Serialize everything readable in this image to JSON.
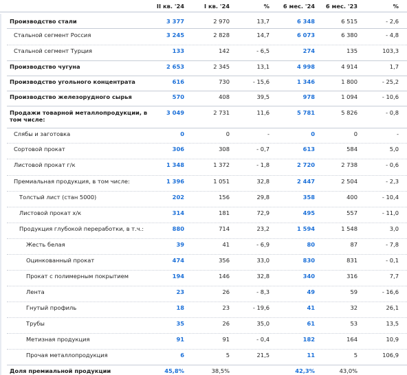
{
  "header": {
    "col1": "II кв. '24",
    "col2": "I кв. '24",
    "col3": "%",
    "col4": "6 мес. '24",
    "col5": "6 мес. '23",
    "col6": "%"
  },
  "rows": [
    {
      "label": "Производство стали",
      "bold": true,
      "indent": 0,
      "values": [
        "3 377",
        "2 970",
        "13,7",
        "6 348",
        "6 515",
        "- 2,6"
      ]
    },
    {
      "label": "Стальной сегмент Россия",
      "bold": false,
      "indent": 1,
      "values": [
        "3 245",
        "2 828",
        "14,7",
        "6 073",
        "6 380",
        "- 4,8"
      ]
    },
    {
      "label": "Стальной сегмент Турция",
      "bold": false,
      "indent": 1,
      "values": [
        "133",
        "142",
        "- 6,5",
        "274",
        "135",
        "103,3"
      ]
    },
    {
      "label": "Производство чугуна",
      "bold": true,
      "indent": 0,
      "values": [
        "2 653",
        "2 345",
        "13,1",
        "4 998",
        "4 914",
        "1,7"
      ]
    },
    {
      "label": "Производство угольного концентрата",
      "bold": true,
      "indent": 0,
      "values": [
        "616",
        "730",
        "- 15,6",
        "1 346",
        "1 800",
        "- 25,2"
      ]
    },
    {
      "label": "Производство железорудного сырья",
      "bold": true,
      "indent": 0,
      "values": [
        "570",
        "408",
        "39,5",
        "978",
        "1 094",
        "- 10,6"
      ]
    },
    {
      "label": "Продажи товарной металлопродукции, в",
      "label2": "том числе:",
      "bold": true,
      "indent": 0,
      "values": [
        "3 049",
        "2 731",
        "11,6",
        "5 781",
        "5 826",
        "- 0,8"
      ]
    },
    {
      "label": "Слябы и заготовка",
      "bold": false,
      "indent": 1,
      "values": [
        "0",
        "0",
        "-",
        "0",
        "0",
        "-"
      ]
    },
    {
      "label": "Сортовой прокат",
      "bold": false,
      "indent": 1,
      "values": [
        "306",
        "308",
        "- 0,7",
        "613",
        "584",
        "5,0"
      ]
    },
    {
      "label": "Листовой прокат г/к",
      "bold": false,
      "indent": 1,
      "values": [
        "1 348",
        "1 372",
        "- 1,8",
        "2 720",
        "2 738",
        "- 0,6"
      ]
    },
    {
      "label": "Премиальная продукция, в том числе:",
      "bold": false,
      "indent": 1,
      "values": [
        "1 396",
        "1 051",
        "32,8",
        "2 447",
        "2 504",
        "- 2,3"
      ]
    },
    {
      "label": "Толстый лист (стан 5000)",
      "bold": false,
      "indent": 2,
      "values": [
        "202",
        "156",
        "29,8",
        "358",
        "400",
        "- 10,4"
      ]
    },
    {
      "label": "Листовой прокат х/к",
      "bold": false,
      "indent": 2,
      "values": [
        "314",
        "181",
        "72,9",
        "495",
        "557",
        "- 11,0"
      ]
    },
    {
      "label": "Продукция глубокой переработки, в т.ч.:",
      "bold": false,
      "indent": 2,
      "values": [
        "880",
        "714",
        "23,2",
        "1 594",
        "1 548",
        "3,0"
      ]
    },
    {
      "label": "Жесть белая",
      "bold": false,
      "indent": 3,
      "values": [
        "39",
        "41",
        "- 6,9",
        "80",
        "87",
        "- 7,8"
      ]
    },
    {
      "label": "Оцинкованный прокат",
      "bold": false,
      "indent": 3,
      "values": [
        "474",
        "356",
        "33,0",
        "830",
        "831",
        "- 0,1"
      ]
    },
    {
      "label": "Прокат с полимерным покрытием",
      "bold": false,
      "indent": 3,
      "values": [
        "194",
        "146",
        "32,8",
        "340",
        "316",
        "7,7"
      ]
    },
    {
      "label": "Лента",
      "bold": false,
      "indent": 3,
      "values": [
        "23",
        "26",
        "- 8,3",
        "49",
        "59",
        "- 16,6"
      ]
    },
    {
      "label": "Гнутый профиль",
      "bold": false,
      "indent": 3,
      "values": [
        "18",
        "23",
        "- 19,6",
        "41",
        "32",
        "26,1"
      ]
    },
    {
      "label": "Трубы",
      "bold": false,
      "indent": 3,
      "values": [
        "35",
        "26",
        "35,0",
        "61",
        "53",
        "13,5"
      ]
    },
    {
      "label": "Метизная продукция",
      "bold": false,
      "indent": 3,
      "values": [
        "91",
        "91",
        "- 0,4",
        "182",
        "164",
        "10,9"
      ]
    },
    {
      "label": "Прочая металлопродукция",
      "bold": false,
      "indent": 3,
      "values": [
        "6",
        "5",
        "21,5",
        "11",
        "5",
        "106,9"
      ]
    },
    {
      "label": "Доля премиальной продукции",
      "bold": true,
      "indent": 0,
      "values": [
        "45,8%",
        "38,5%",
        "",
        "42,3%",
        "43,0%",
        ""
      ]
    }
  ],
  "colors": {
    "accent_blue": "#1a6fd8",
    "text": "#1f1f1f",
    "rule": "#c6ccd6"
  }
}
